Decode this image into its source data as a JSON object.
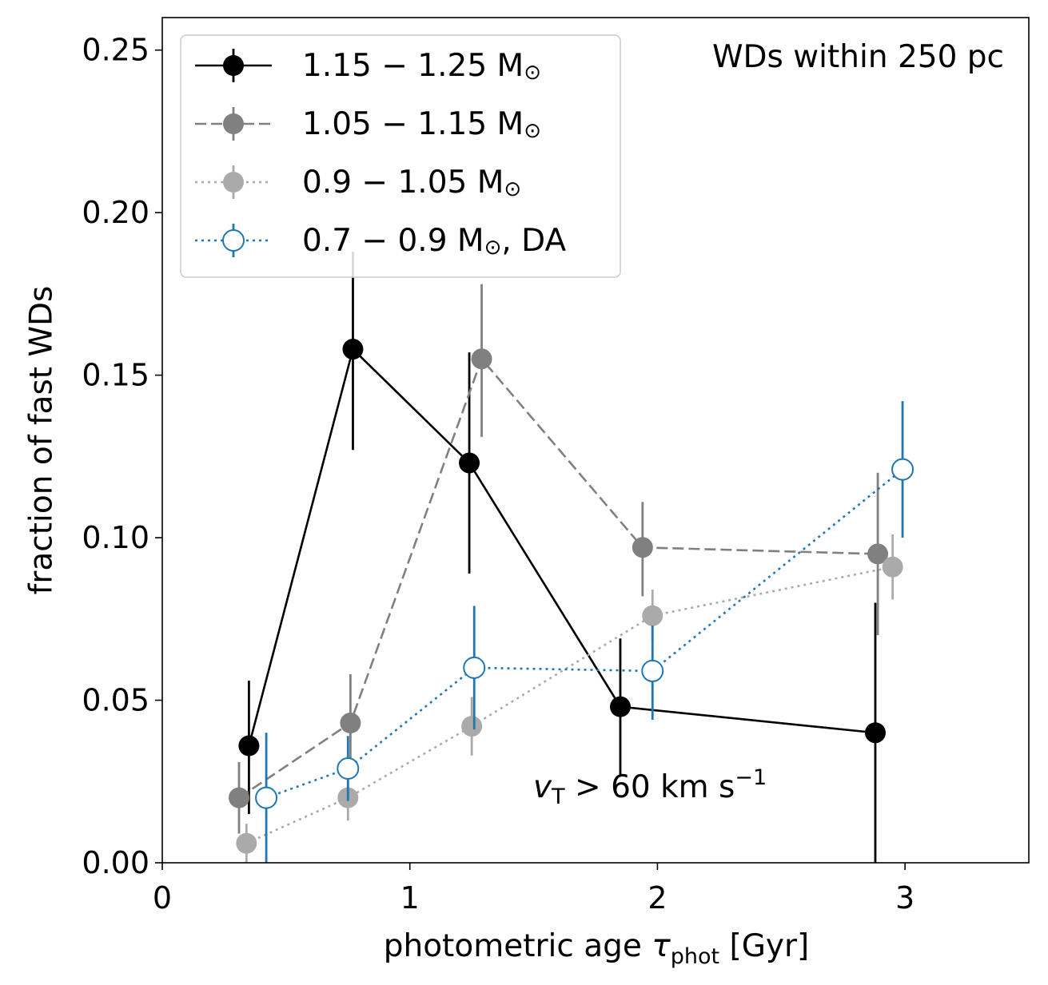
{
  "chart_data": {
    "type": "scatter",
    "xlabel": "photometric age τ_phot [Gyr]",
    "xlabel_main": "photometric age ",
    "xlabel_tau": "τ",
    "xlabel_sub": "phot",
    "xlabel_unit": " [Gyr]",
    "ylabel": "fraction of fast WDs",
    "xlim": [
      0,
      3.5
    ],
    "ylim": [
      0,
      0.26
    ],
    "xticks": [
      0,
      1,
      2,
      3
    ],
    "xtick_labels": [
      "0",
      "1",
      "2",
      "3"
    ],
    "yticks": [
      0,
      0.05,
      0.1,
      0.15,
      0.2,
      0.25
    ],
    "ytick_labels": [
      "0.00",
      "0.05",
      "0.10",
      "0.15",
      "0.20",
      "0.25"
    ],
    "grid": false,
    "legend_position": "top-left",
    "annotations": {
      "sample": "WDs within 250 pc",
      "cut_v": "v",
      "cut_sub": "T",
      "cut_rest": " > 60 km s",
      "cut_exp": "−1"
    },
    "series": [
      {
        "name": "1.15 − 1.25 M⊙",
        "name_main": "1.15 − 1.25 M",
        "name_sun": "⊙",
        "name_suffix": "",
        "color": "#000000",
        "linestyle": "solid",
        "marker": "filled",
        "x": [
          0.35,
          0.77,
          1.24,
          1.85,
          2.88
        ],
        "y": [
          0.036,
          0.158,
          0.123,
          0.048,
          0.04
        ],
        "yerr_low": [
          0.021,
          0.031,
          0.034,
          0.021,
          0.04
        ],
        "yerr_high": [
          0.02,
          0.03,
          0.034,
          0.021,
          0.04
        ]
      },
      {
        "name": "1.05 − 1.15 M⊙",
        "name_main": "1.05 − 1.15 M",
        "name_sun": "⊙",
        "name_suffix": "",
        "color": "#808080",
        "linestyle": "dashed",
        "marker": "filled",
        "x": [
          0.31,
          0.76,
          1.29,
          1.94,
          2.89
        ],
        "y": [
          0.02,
          0.043,
          0.155,
          0.097,
          0.095
        ],
        "yerr_low": [
          0.011,
          0.015,
          0.024,
          0.015,
          0.025
        ],
        "yerr_high": [
          0.011,
          0.015,
          0.023,
          0.014,
          0.025
        ]
      },
      {
        "name": "0.9 − 1.05 M⊙",
        "name_main": "0.9 − 1.05 M",
        "name_sun": "⊙",
        "name_suffix": "",
        "color": "#aaaaaa",
        "linestyle": "dotted",
        "marker": "filled",
        "x": [
          0.34,
          0.75,
          1.25,
          1.98,
          2.95
        ],
        "y": [
          0.006,
          0.02,
          0.042,
          0.076,
          0.091
        ],
        "yerr_low": [
          0.006,
          0.007,
          0.009,
          0.008,
          0.01
        ],
        "yerr_high": [
          0.006,
          0.007,
          0.009,
          0.008,
          0.01
        ]
      },
      {
        "name": "0.7 − 0.9 M⊙, DA",
        "name_main": "0.7 − 0.9 M",
        "name_sun": "⊙",
        "name_suffix": ", DA",
        "color": "#1f77b4",
        "linestyle": "dotted",
        "marker": "open",
        "x": [
          0.42,
          0.75,
          1.26,
          1.98,
          2.99
        ],
        "y": [
          0.02,
          0.029,
          0.06,
          0.059,
          0.121
        ],
        "yerr_low": [
          0.02,
          0.01,
          0.019,
          0.015,
          0.021
        ],
        "yerr_high": [
          0.02,
          0.01,
          0.019,
          0.014,
          0.021
        ]
      }
    ]
  }
}
